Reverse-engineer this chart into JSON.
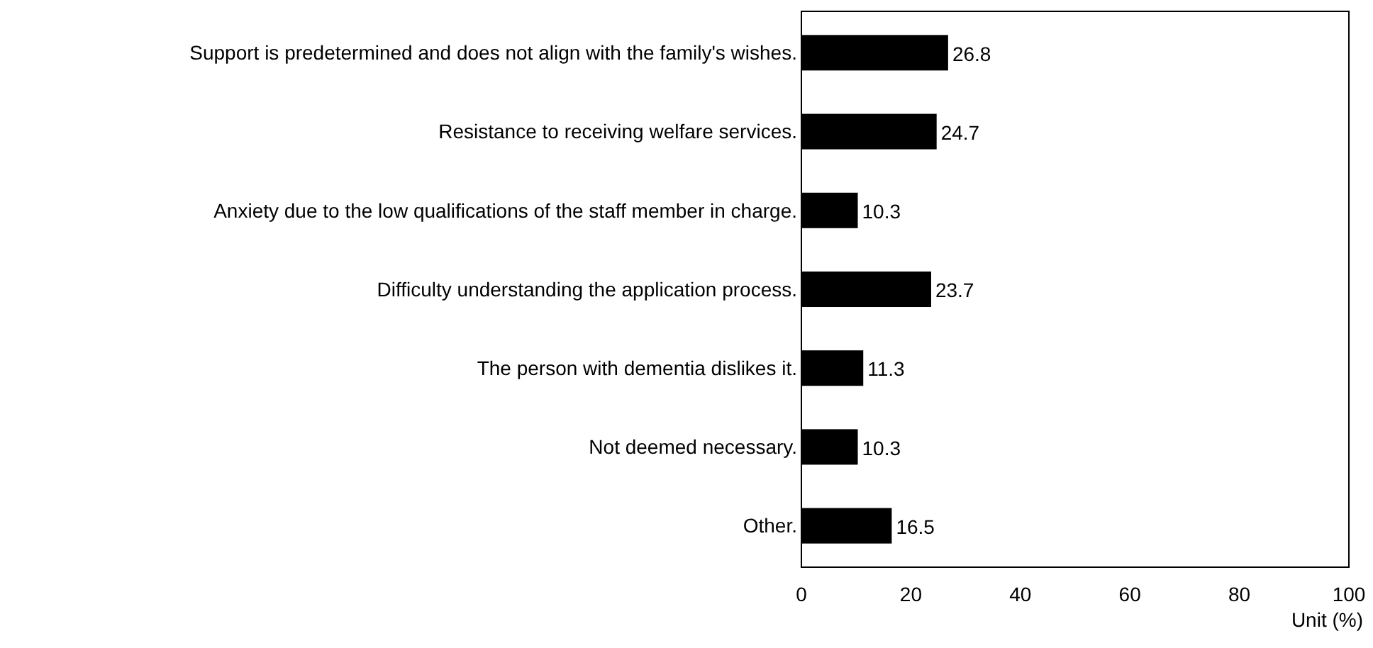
{
  "chart_data": {
    "type": "bar",
    "orientation": "horizontal",
    "categories": [
      "Support is predetermined and does not align with the family's wishes.",
      "Resistance to receiving welfare services.",
      "Anxiety due to the low qualifications of the staff member in charge.",
      "Difficulty understanding the application process.",
      "The person with dementia dislikes it.",
      "Not deemed necessary.",
      "Other."
    ],
    "values": [
      26.8,
      24.7,
      10.3,
      23.7,
      11.3,
      10.3,
      16.5
    ],
    "color": "#000000",
    "xlim": [
      0,
      100
    ],
    "xticks": [
      0,
      20,
      40,
      60,
      80,
      100
    ],
    "xlabel": "Unit (%)",
    "data_labels": true
  }
}
